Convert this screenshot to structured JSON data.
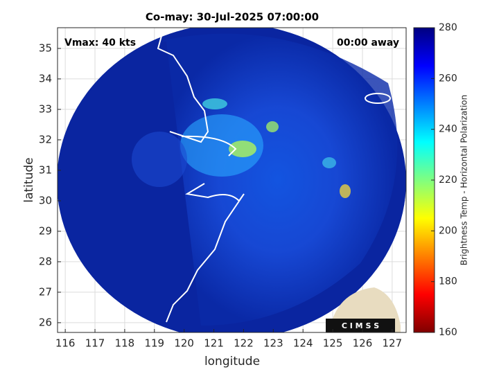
{
  "chart_data": {
    "type": "image",
    "title": "Co-may: 30-Jul-2025 07:00:00",
    "xlabel": "longitude",
    "ylabel": "latitude",
    "annotations": [
      "Vmax: 40 kts",
      "00:00 away"
    ],
    "xlim": [
      115.74,
      127.47
    ],
    "ylim": [
      25.68,
      35.68
    ],
    "xticks": [
      116,
      117,
      118,
      119,
      120,
      121,
      122,
      123,
      124,
      125,
      126,
      127
    ],
    "yticks": [
      26,
      27,
      28,
      29,
      30,
      31,
      32,
      33,
      34,
      35
    ],
    "grid": true,
    "colorbar": {
      "label": "Brightness Temp - Horizontal Polarization",
      "colormap": "jet",
      "clim": [
        160,
        280
      ],
      "ticks": [
        160,
        180,
        200,
        220,
        240,
        260,
        280
      ]
    },
    "logo": "C I M S S"
  }
}
